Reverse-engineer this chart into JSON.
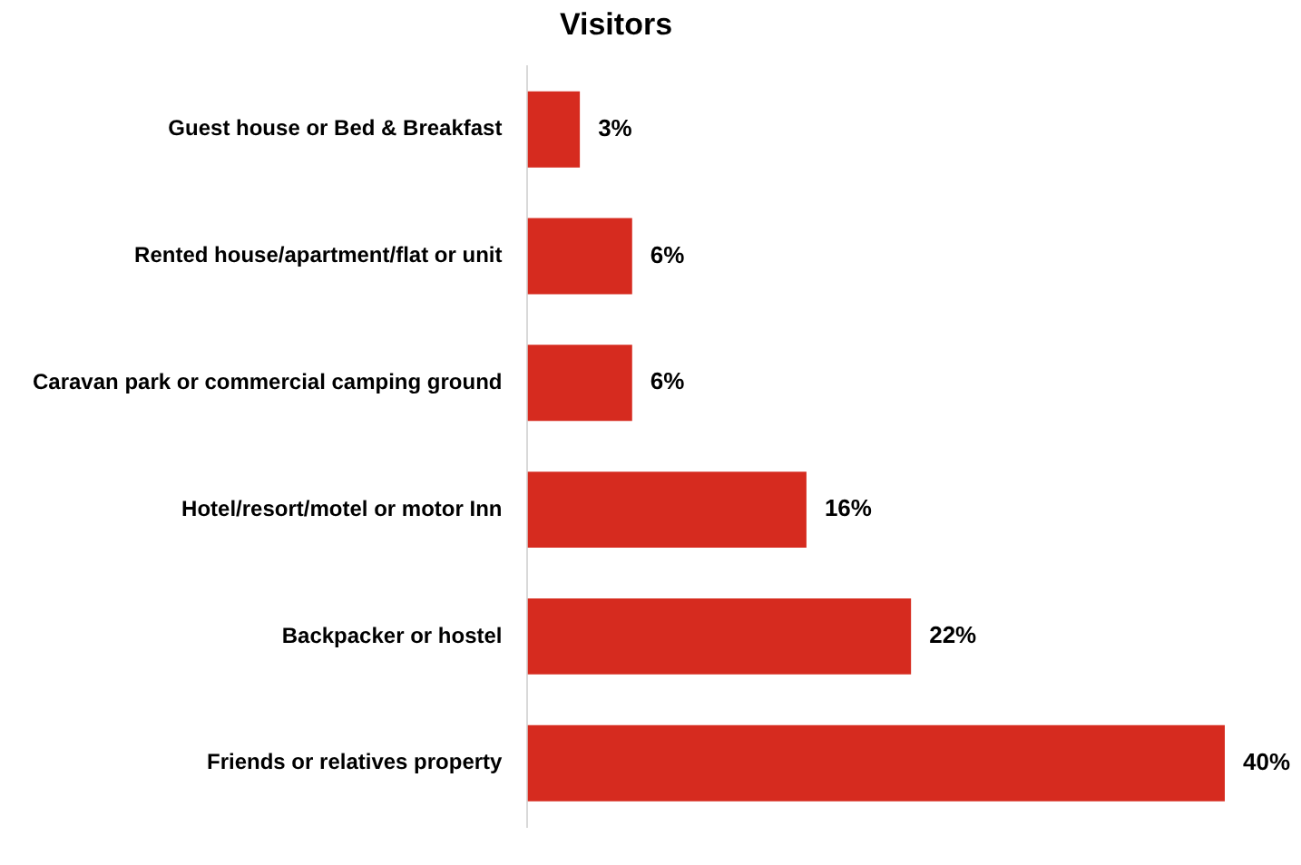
{
  "chart_data": {
    "type": "bar",
    "orientation": "horizontal",
    "title": "Visitors",
    "categories": [
      "Guest house or Bed & Breakfast",
      "Rented house/apartment/flat or unit",
      "Caravan park or commercial camping ground",
      "Hotel/resort/motel or motor Inn",
      "Backpacker or hostel",
      "Friends or relatives property"
    ],
    "values": [
      3,
      6,
      6,
      16,
      22,
      40
    ],
    "value_labels": [
      "3%",
      "6%",
      "6%",
      "16%",
      "22%",
      "40%"
    ],
    "color": "#d62b1f"
  }
}
